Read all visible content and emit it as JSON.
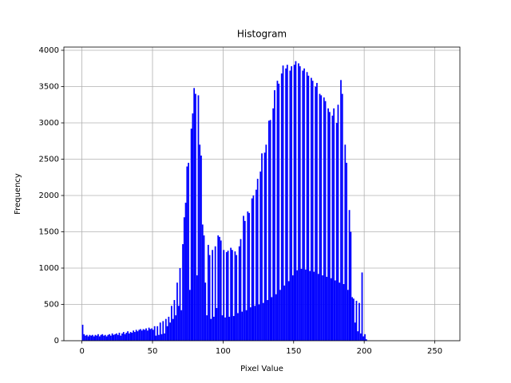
{
  "chart_data": {
    "type": "histogram",
    "title": "Histogram",
    "x_label": "Pixel Value",
    "y_label": "Frequency",
    "color": "#0000ff",
    "grid": true,
    "xlim": [
      -12.8,
      267.8
    ],
    "ylim": [
      0,
      4044
    ],
    "xticks": [
      0,
      50,
      100,
      150,
      200,
      250
    ],
    "yticks": [
      0,
      500,
      1000,
      1500,
      2000,
      2500,
      3000,
      3500,
      4000
    ],
    "bins": [
      0,
      1,
      2,
      3,
      4,
      5,
      6,
      7,
      8,
      9,
      10,
      11,
      12,
      13,
      14,
      15,
      16,
      17,
      18,
      19,
      20,
      21,
      22,
      23,
      24,
      25,
      26,
      27,
      28,
      29,
      30,
      31,
      32,
      33,
      34,
      35,
      36,
      37,
      38,
      39,
      40,
      41,
      42,
      43,
      44,
      45,
      46,
      47,
      48,
      49,
      50,
      51,
      52,
      53,
      54,
      55,
      56,
      57,
      58,
      59,
      60,
      61,
      62,
      63,
      64,
      65,
      66,
      67,
      68,
      69,
      70,
      71,
      72,
      73,
      74,
      75,
      76,
      77,
      78,
      79,
      80,
      81,
      82,
      83,
      84,
      85,
      86,
      87,
      88,
      89,
      90,
      91,
      92,
      93,
      94,
      95,
      96,
      97,
      98,
      99,
      100,
      101,
      102,
      103,
      104,
      105,
      106,
      107,
      108,
      109,
      110,
      111,
      112,
      113,
      114,
      115,
      116,
      117,
      118,
      119,
      120,
      121,
      122,
      123,
      124,
      125,
      126,
      127,
      128,
      129,
      130,
      131,
      132,
      133,
      134,
      135,
      136,
      137,
      138,
      139,
      140,
      141,
      142,
      143,
      144,
      145,
      146,
      147,
      148,
      149,
      150,
      151,
      152,
      153,
      154,
      155,
      156,
      157,
      158,
      159,
      160,
      161,
      162,
      163,
      164,
      165,
      166,
      167,
      168,
      169,
      170,
      171,
      172,
      173,
      174,
      175,
      176,
      177,
      178,
      179,
      180,
      181,
      182,
      183,
      184,
      185,
      186,
      187,
      188,
      189,
      190,
      191,
      192,
      193,
      194,
      195,
      196,
      197,
      198,
      199,
      200,
      201,
      202,
      203,
      204,
      205,
      206,
      207,
      208,
      209,
      210,
      211,
      212,
      213,
      214,
      215,
      216,
      217,
      218,
      219,
      220,
      221,
      222,
      223,
      224,
      225,
      226,
      227,
      228,
      229,
      230,
      231,
      232,
      233,
      234,
      235,
      236,
      237,
      238,
      239,
      240,
      241,
      242,
      243,
      244,
      245,
      246,
      247,
      248,
      249,
      250,
      251,
      252,
      253,
      254,
      255,
      256
    ],
    "values": [
      220,
      90,
      70,
      80,
      60,
      80,
      70,
      80,
      60,
      80,
      70,
      90,
      60,
      80,
      90,
      70,
      80,
      60,
      80,
      90,
      70,
      100,
      80,
      90,
      100,
      80,
      110,
      70,
      100,
      120,
      90,
      110,
      130,
      100,
      120,
      110,
      140,
      120,
      150,
      130,
      150,
      160,
      140,
      160,
      150,
      170,
      140,
      180,
      160,
      170,
      150,
      200,
      70,
      200,
      80,
      250,
      90,
      270,
      100,
      300,
      200,
      330,
      250,
      480,
      300,
      560,
      350,
      800,
      480,
      1000,
      420,
      1330,
      1700,
      1900,
      2400,
      2450,
      700,
      2920,
      3130,
      3480,
      3400,
      900,
      3380,
      2700,
      2550,
      1600,
      1450,
      800,
      350,
      1320,
      1180,
      300,
      1250,
      330,
      1300,
      450,
      1450,
      1430,
      1380,
      350,
      1250,
      320,
      1220,
      1240,
      330,
      1280,
      1250,
      340,
      1230,
      1180,
      380,
      1300,
      1400,
      400,
      1720,
      1650,
      420,
      1780,
      1760,
      460,
      1960,
      2000,
      480,
      2080,
      2230,
      500,
      2330,
      2580,
      520,
      2590,
      2700,
      560,
      3030,
      3040,
      600,
      3200,
      3450,
      640,
      3580,
      3540,
      700,
      3680,
      3790,
      760,
      3750,
      3800,
      820,
      3720,
      3780,
      900,
      3800,
      3850,
      970,
      3820,
      3780,
      990,
      3720,
      3750,
      980,
      3700,
      3650,
      960,
      3620,
      3580,
      950,
      3500,
      3550,
      920,
      3400,
      3380,
      900,
      3350,
      3300,
      880,
      3200,
      3150,
      860,
      3100,
      3200,
      830,
      3000,
      3250,
      800,
      3590,
      3400,
      780,
      2700,
      2450,
      700,
      1800,
      1500,
      600,
      580,
      250,
      550,
      130,
      520,
      100,
      940,
      60,
      90,
      20,
      0,
      0,
      0,
      0,
      0,
      0,
      0,
      0,
      0,
      0,
      0,
      0,
      0,
      0,
      0,
      0,
      0,
      0,
      0,
      0,
      0,
      0,
      0,
      0,
      0,
      0,
      0,
      0,
      0,
      0,
      0,
      0,
      0,
      0,
      0,
      0,
      0,
      0,
      0,
      0,
      0,
      0,
      0,
      0,
      0,
      0,
      0,
      0,
      0,
      0,
      0,
      0,
      0,
      0
    ]
  }
}
